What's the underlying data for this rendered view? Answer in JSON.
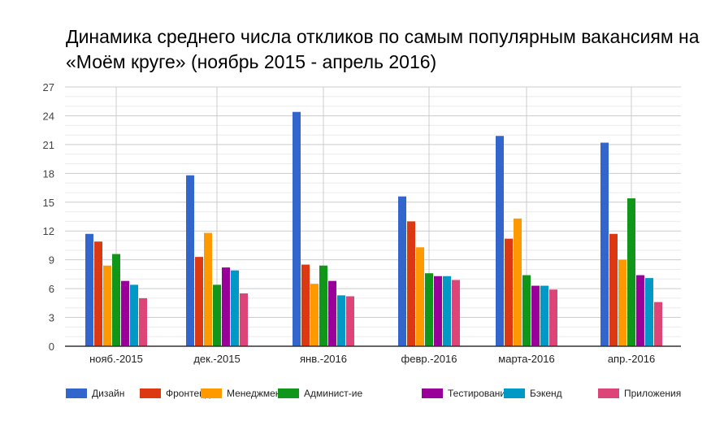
{
  "chart_data": {
    "type": "bar",
    "title": "Динамика среднего числа откликов по самым популярным вакансиям на «Моём круге» (ноябрь 2015 - апрель 2016)",
    "categories": [
      "нояб.-2015",
      "дек.-2015",
      "янв.-2016",
      "февр.-2016",
      "марта-2016",
      "апр.-2016"
    ],
    "ylim": [
      0,
      27
    ],
    "yticks": [
      0,
      3,
      6,
      9,
      12,
      15,
      18,
      21,
      24,
      27
    ],
    "grid": true,
    "legend_position": "bottom",
    "series": [
      {
        "name": "Дизайн",
        "color": "#3366cc",
        "values": [
          11.7,
          17.8,
          24.4,
          15.6,
          21.9,
          21.2
        ]
      },
      {
        "name": "Фронтенд",
        "color": "#dc3912",
        "values": [
          10.9,
          9.3,
          8.5,
          13.0,
          11.2,
          11.7
        ]
      },
      {
        "name": "Менеджмент",
        "color": "#ff9900",
        "values": [
          8.4,
          11.8,
          6.5,
          10.3,
          13.3,
          9.0
        ]
      },
      {
        "name": "Админист-ие",
        "color": "#109618",
        "values": [
          9.6,
          6.4,
          8.4,
          7.6,
          7.4,
          15.4
        ]
      },
      {
        "name": "Тестирование",
        "color": "#990099",
        "values": [
          6.8,
          8.2,
          6.8,
          7.3,
          6.3,
          7.4
        ]
      },
      {
        "name": "Бэкенд",
        "color": "#0099c6",
        "values": [
          6.4,
          7.9,
          5.3,
          7.3,
          6.3,
          7.1
        ]
      },
      {
        "name": "Приложения",
        "color": "#dd4477",
        "values": [
          5.0,
          5.5,
          5.2,
          6.9,
          5.9,
          4.6
        ]
      }
    ]
  }
}
